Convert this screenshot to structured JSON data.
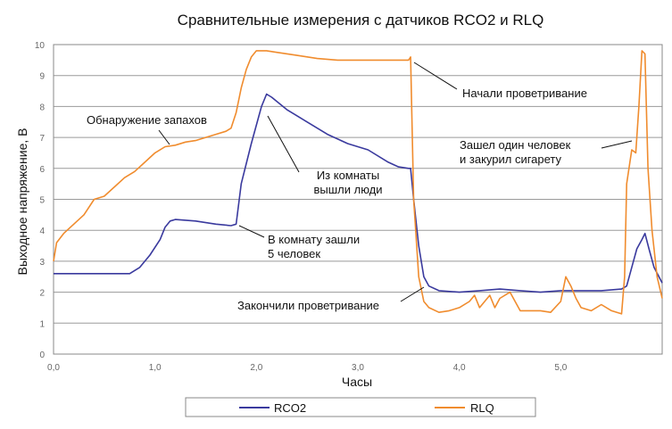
{
  "chart_data": {
    "type": "line",
    "title": "Сравнительные измерения с датчиков RCO2 и RLQ",
    "xlabel": "Часы",
    "ylabel": "Выходное напряжение, В",
    "xlim": [
      0,
      6
    ],
    "ylim": [
      0,
      10
    ],
    "x_ticks": [
      "0,0",
      "1,0",
      "2,0",
      "3,0",
      "4,0",
      "5,0"
    ],
    "y_ticks": [
      "0",
      "1",
      "2",
      "3",
      "4",
      "5",
      "6",
      "7",
      "8",
      "9",
      "10"
    ],
    "grid": true,
    "legend": "bottom",
    "series": [
      {
        "name": "RCO2",
        "color": "#3a3a9e",
        "points": [
          [
            0,
            2.6
          ],
          [
            0.2,
            2.6
          ],
          [
            0.4,
            2.6
          ],
          [
            0.6,
            2.6
          ],
          [
            0.75,
            2.6
          ],
          [
            0.85,
            2.8
          ],
          [
            0.95,
            3.2
          ],
          [
            1.05,
            3.7
          ],
          [
            1.1,
            4.1
          ],
          [
            1.15,
            4.3
          ],
          [
            1.2,
            4.35
          ],
          [
            1.4,
            4.3
          ],
          [
            1.6,
            4.2
          ],
          [
            1.75,
            4.15
          ],
          [
            1.8,
            4.2
          ],
          [
            1.85,
            5.5
          ],
          [
            1.95,
            6.8
          ],
          [
            2.05,
            8.0
          ],
          [
            2.1,
            8.4
          ],
          [
            2.15,
            8.3
          ],
          [
            2.3,
            7.9
          ],
          [
            2.5,
            7.5
          ],
          [
            2.7,
            7.1
          ],
          [
            2.9,
            6.8
          ],
          [
            3.1,
            6.6
          ],
          [
            3.3,
            6.2
          ],
          [
            3.4,
            6.05
          ],
          [
            3.5,
            6.0
          ],
          [
            3.52,
            6.0
          ],
          [
            3.55,
            5.0
          ],
          [
            3.6,
            3.5
          ],
          [
            3.65,
            2.5
          ],
          [
            3.7,
            2.2
          ],
          [
            3.8,
            2.05
          ],
          [
            4.0,
            2.0
          ],
          [
            4.2,
            2.05
          ],
          [
            4.4,
            2.1
          ],
          [
            4.6,
            2.05
          ],
          [
            4.8,
            2.0
          ],
          [
            5.0,
            2.05
          ],
          [
            5.2,
            2.05
          ],
          [
            5.4,
            2.05
          ],
          [
            5.6,
            2.1
          ],
          [
            5.65,
            2.2
          ],
          [
            5.7,
            2.8
          ],
          [
            5.75,
            3.4
          ],
          [
            5.8,
            3.7
          ],
          [
            5.83,
            3.9
          ],
          [
            5.87,
            3.4
          ],
          [
            5.92,
            2.8
          ],
          [
            6.0,
            2.3
          ]
        ]
      },
      {
        "name": "RLQ",
        "color": "#f08c2e",
        "points": [
          [
            0,
            3.0
          ],
          [
            0.03,
            3.6
          ],
          [
            0.1,
            3.9
          ],
          [
            0.2,
            4.2
          ],
          [
            0.3,
            4.5
          ],
          [
            0.4,
            5.0
          ],
          [
            0.5,
            5.1
          ],
          [
            0.6,
            5.4
          ],
          [
            0.7,
            5.7
          ],
          [
            0.8,
            5.9
          ],
          [
            0.9,
            6.2
          ],
          [
            1.0,
            6.5
          ],
          [
            1.1,
            6.7
          ],
          [
            1.2,
            6.75
          ],
          [
            1.3,
            6.85
          ],
          [
            1.4,
            6.9
          ],
          [
            1.5,
            7.0
          ],
          [
            1.6,
            7.1
          ],
          [
            1.7,
            7.2
          ],
          [
            1.75,
            7.3
          ],
          [
            1.8,
            7.8
          ],
          [
            1.85,
            8.6
          ],
          [
            1.9,
            9.2
          ],
          [
            1.95,
            9.6
          ],
          [
            2.0,
            9.8
          ],
          [
            2.1,
            9.8
          ],
          [
            2.2,
            9.75
          ],
          [
            2.4,
            9.65
          ],
          [
            2.6,
            9.55
          ],
          [
            2.8,
            9.5
          ],
          [
            3.0,
            9.5
          ],
          [
            3.2,
            9.5
          ],
          [
            3.4,
            9.5
          ],
          [
            3.5,
            9.5
          ],
          [
            3.52,
            9.6
          ],
          [
            3.55,
            5.0
          ],
          [
            3.6,
            2.5
          ],
          [
            3.65,
            1.7
          ],
          [
            3.7,
            1.5
          ],
          [
            3.8,
            1.35
          ],
          [
            3.9,
            1.4
          ],
          [
            4.0,
            1.5
          ],
          [
            4.1,
            1.7
          ],
          [
            4.15,
            1.9
          ],
          [
            4.2,
            1.5
          ],
          [
            4.3,
            1.9
          ],
          [
            4.35,
            1.5
          ],
          [
            4.4,
            1.8
          ],
          [
            4.5,
            2.0
          ],
          [
            4.55,
            1.7
          ],
          [
            4.6,
            1.4
          ],
          [
            4.8,
            1.4
          ],
          [
            4.9,
            1.35
          ],
          [
            5.0,
            1.7
          ],
          [
            5.05,
            2.5
          ],
          [
            5.1,
            2.2
          ],
          [
            5.15,
            1.8
          ],
          [
            5.2,
            1.5
          ],
          [
            5.3,
            1.4
          ],
          [
            5.4,
            1.6
          ],
          [
            5.5,
            1.4
          ],
          [
            5.6,
            1.3
          ],
          [
            5.63,
            2.5
          ],
          [
            5.65,
            5.5
          ],
          [
            5.7,
            6.6
          ],
          [
            5.74,
            6.5
          ],
          [
            5.77,
            8.0
          ],
          [
            5.8,
            9.8
          ],
          [
            5.83,
            9.7
          ],
          [
            5.86,
            6.0
          ],
          [
            5.9,
            4.0
          ],
          [
            5.95,
            2.5
          ],
          [
            6.0,
            1.8
          ]
        ]
      }
    ],
    "annotations": [
      {
        "lines": [
          "Обнаружение запахов"
        ]
      },
      {
        "lines": [
          "Из комнаты",
          "вышли люди"
        ]
      },
      {
        "lines": [
          "В комнату зашли",
          "5 человек"
        ]
      },
      {
        "lines": [
          "Начали проветривание"
        ]
      },
      {
        "lines": [
          "Зашел один человек",
          "и закурил сигарету"
        ]
      },
      {
        "lines": [
          "Закончили проветривание"
        ]
      }
    ]
  }
}
